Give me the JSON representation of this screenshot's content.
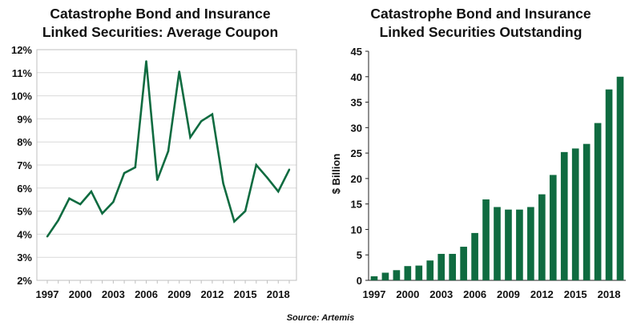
{
  "source": "Source: Artemis",
  "colors": {
    "series": "#0f6b40",
    "grid": "#d9d9d9",
    "axis": "#222222"
  },
  "chart_data": [
    {
      "type": "line",
      "title_line1": "Catastrophe Bond and Insurance",
      "title_line2": "Linked Securities: Average Coupon",
      "x": [
        1997,
        1998,
        1999,
        2000,
        2001,
        2002,
        2003,
        2004,
        2005,
        2006,
        2007,
        2008,
        2009,
        2010,
        2011,
        2012,
        2013,
        2014,
        2015,
        2016,
        2017,
        2018,
        2019
      ],
      "values": [
        3.9,
        4.6,
        5.55,
        5.3,
        5.85,
        4.9,
        5.4,
        6.65,
        6.9,
        11.5,
        6.35,
        7.6,
        11.05,
        8.2,
        8.9,
        9.2,
        6.2,
        4.55,
        5.0,
        7.0,
        6.45,
        5.85,
        6.8
      ],
      "yticks": [
        "2%",
        "3%",
        "4%",
        "5%",
        "6%",
        "7%",
        "8%",
        "9%",
        "10%",
        "11%",
        "12%"
      ],
      "ylim": [
        2,
        12
      ],
      "xticks": [
        "1997",
        "2000",
        "2003",
        "2006",
        "2009",
        "2012",
        "2015",
        "2018"
      ],
      "grid": "horizontal"
    },
    {
      "type": "bar",
      "title_line1": "Catastrophe Bond and Insurance",
      "title_line2": "Linked Securities Outstanding",
      "ylabel": "$ Billion",
      "x": [
        1997,
        1998,
        1999,
        2000,
        2001,
        2002,
        2003,
        2004,
        2005,
        2006,
        2007,
        2008,
        2009,
        2010,
        2011,
        2012,
        2013,
        2014,
        2015,
        2016,
        2017,
        2018,
        2019
      ],
      "values": [
        0.8,
        1.5,
        2.0,
        2.8,
        2.9,
        3.9,
        5.2,
        5.2,
        6.6,
        9.3,
        15.9,
        14.4,
        13.9,
        13.9,
        14.4,
        16.9,
        20.7,
        25.2,
        25.9,
        26.8,
        30.9,
        37.5,
        40.0
      ],
      "yticks": [
        "0",
        "5",
        "10",
        "15",
        "20",
        "25",
        "30",
        "35",
        "40",
        "45"
      ],
      "ylim": [
        0,
        45
      ],
      "xticks": [
        "1997",
        "2000",
        "2003",
        "2006",
        "2009",
        "2012",
        "2015",
        "2018"
      ],
      "grid": "none"
    }
  ]
}
